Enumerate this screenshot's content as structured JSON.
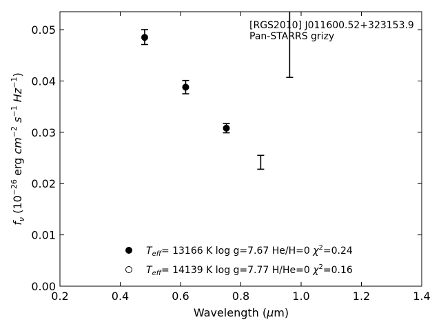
{
  "chart_data": {
    "type": "scatter",
    "xlabel": "Wavelength (μm)",
    "ylabel": "f_ν (10^−26 erg cm^−2 s^−1 Hz^−1)",
    "xlim": [
      0.2,
      1.4
    ],
    "ylim": [
      0.0,
      0.0535
    ],
    "x_ticks": [
      "0.2",
      "0.4",
      "0.6",
      "0.8",
      "1.0",
      "1.2",
      "1.4"
    ],
    "y_ticks": [
      "0.00",
      "0.01",
      "0.02",
      "0.03",
      "0.04",
      "0.05"
    ],
    "grid": false,
    "annotation": [
      "[RGS2010] J011600.52+323153.9",
      "Pan-STARRS grizy"
    ],
    "observed": [
      {
        "x": 0.481,
        "y": 0.04856,
        "err": 0.00145
      },
      {
        "x": 0.617,
        "y": 0.0388,
        "err": 0.0013
      },
      {
        "x": 0.752,
        "y": 0.0308,
        "err": 0.0009
      },
      {
        "x": 0.866,
        "y": 0.02415,
        "err": 0.00135
      },
      {
        "x": 0.962,
        "y": 0.0525,
        "err": 0.0118
      }
    ],
    "series": [
      {
        "marker": "filled",
        "legend": {
          "teff": "= 13166 K  log g=7.67  He/H=0  ",
          "chi2": "=0.24"
        },
        "points": [
          {
            "x": 0.481,
            "y": 0.0485
          },
          {
            "x": 0.617,
            "y": 0.0388
          },
          {
            "x": 0.752,
            "y": 0.0308
          }
        ]
      },
      {
        "marker": "open",
        "legend": {
          "teff": "= 14139 K  log g=7.77  H/He=0  ",
          "chi2": "=0.16"
        },
        "points": []
      }
    ],
    "legend_position": "bottom-center"
  }
}
